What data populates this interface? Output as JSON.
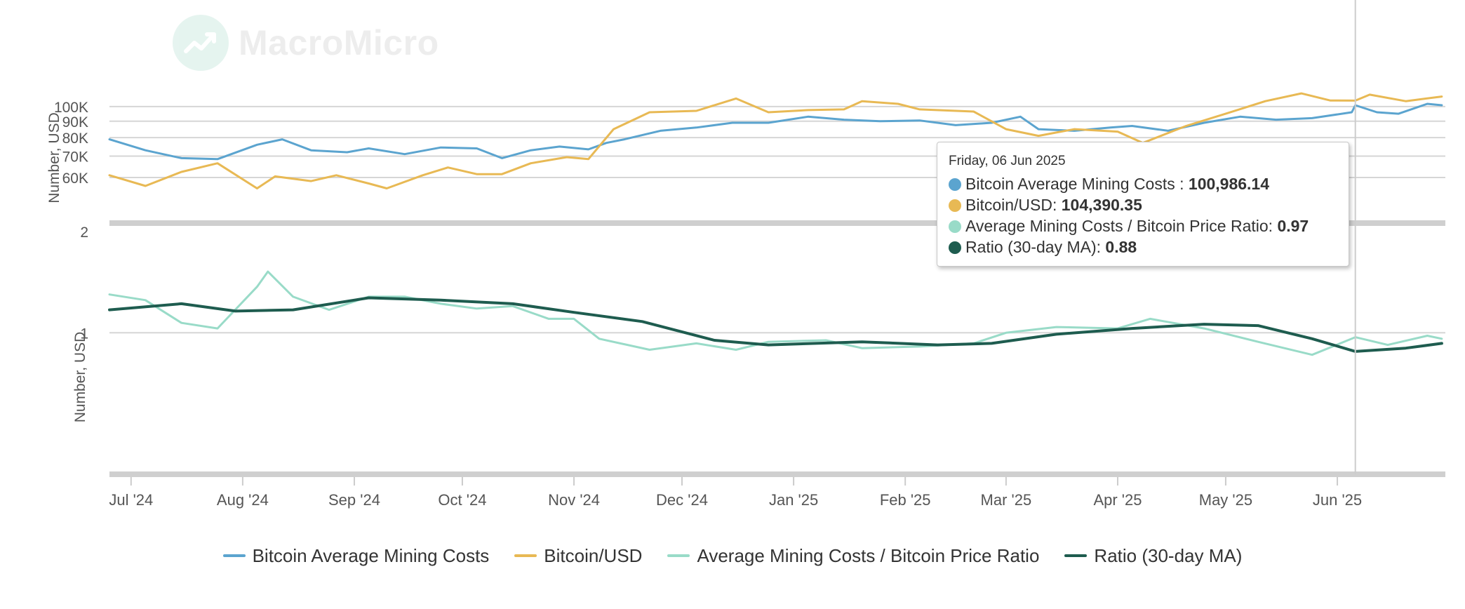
{
  "watermark": {
    "text": "MacroMicro",
    "icon": "chart-logo-icon"
  },
  "chart_data": {
    "type": "line",
    "panels": [
      {
        "ylabel": "Number, USD",
        "yscale": "log",
        "ylim": [
          45000,
          130000
        ],
        "yticks": [
          {
            "value": 60000,
            "label": "60K"
          },
          {
            "value": 70000,
            "label": "70K"
          },
          {
            "value": 80000,
            "label": "80K"
          },
          {
            "value": 90000,
            "label": "90K"
          },
          {
            "value": 100000,
            "label": "100K"
          }
        ],
        "series": [
          {
            "name": "Bitcoin Average Mining Costs",
            "color": "#5ba4cf",
            "points": [
              [
                "2024-06-25",
                79000
              ],
              [
                "2024-07-05",
                73000
              ],
              [
                "2024-07-15",
                69000
              ],
              [
                "2024-07-25",
                68500
              ],
              [
                "2024-08-05",
                76000
              ],
              [
                "2024-08-12",
                79000
              ],
              [
                "2024-08-20",
                73000
              ],
              [
                "2024-08-30",
                72000
              ],
              [
                "2024-09-05",
                74000
              ],
              [
                "2024-09-15",
                71000
              ],
              [
                "2024-09-25",
                74500
              ],
              [
                "2024-10-05",
                74000
              ],
              [
                "2024-10-12",
                69000
              ],
              [
                "2024-10-20",
                73000
              ],
              [
                "2024-10-28",
                75000
              ],
              [
                "2024-11-05",
                73500
              ],
              [
                "2024-11-10",
                77000
              ],
              [
                "2024-11-15",
                79000
              ],
              [
                "2024-11-25",
                84000
              ],
              [
                "2024-12-05",
                86000
              ],
              [
                "2024-12-15",
                89000
              ],
              [
                "2024-12-25",
                89000
              ],
              [
                "2025-01-05",
                93000
              ],
              [
                "2025-01-15",
                91000
              ],
              [
                "2025-01-25",
                90000
              ],
              [
                "2025-02-05",
                90500
              ],
              [
                "2025-02-15",
                87500
              ],
              [
                "2025-02-25",
                89000
              ],
              [
                "2025-03-05",
                93000
              ],
              [
                "2025-03-10",
                85000
              ],
              [
                "2025-03-20",
                84000
              ],
              [
                "2025-03-30",
                86000
              ],
              [
                "2025-04-05",
                87000
              ],
              [
                "2025-04-15",
                84000
              ],
              [
                "2025-04-25",
                89000
              ],
              [
                "2025-05-05",
                93000
              ],
              [
                "2025-05-15",
                91000
              ],
              [
                "2025-05-25",
                92000
              ],
              [
                "2025-06-05",
                96000
              ],
              [
                "2025-06-06",
                100986.14
              ],
              [
                "2025-06-12",
                96000
              ],
              [
                "2025-06-18",
                95000
              ],
              [
                "2025-06-26",
                102000
              ],
              [
                "2025-06-30",
                101000
              ]
            ]
          },
          {
            "name": "Bitcoin/USD",
            "color": "#e8b954",
            "points": [
              [
                "2024-06-25",
                61000
              ],
              [
                "2024-07-05",
                56500
              ],
              [
                "2024-07-15",
                62500
              ],
              [
                "2024-07-25",
                66500
              ],
              [
                "2024-08-05",
                55500
              ],
              [
                "2024-08-10",
                60500
              ],
              [
                "2024-08-20",
                58500
              ],
              [
                "2024-08-27",
                61000
              ],
              [
                "2024-09-05",
                57500
              ],
              [
                "2024-09-10",
                55500
              ],
              [
                "2024-09-20",
                61000
              ],
              [
                "2024-09-27",
                64500
              ],
              [
                "2024-10-05",
                61500
              ],
              [
                "2024-10-12",
                61500
              ],
              [
                "2024-10-20",
                66500
              ],
              [
                "2024-10-30",
                69500
              ],
              [
                "2024-11-05",
                68500
              ],
              [
                "2024-11-12",
                85000
              ],
              [
                "2024-11-22",
                96000
              ],
              [
                "2024-12-05",
                97000
              ],
              [
                "2024-12-16",
                106000
              ],
              [
                "2024-12-25",
                96000
              ],
              [
                "2025-01-05",
                97500
              ],
              [
                "2025-01-15",
                98000
              ],
              [
                "2025-01-20",
                104000
              ],
              [
                "2025-01-30",
                102000
              ],
              [
                "2025-02-05",
                98000
              ],
              [
                "2025-02-20",
                96500
              ],
              [
                "2025-03-01",
                85000
              ],
              [
                "2025-03-10",
                81000
              ],
              [
                "2025-03-20",
                85000
              ],
              [
                "2025-04-01",
                83500
              ],
              [
                "2025-04-08",
                77000
              ],
              [
                "2025-04-20",
                87000
              ],
              [
                "2025-05-01",
                95000
              ],
              [
                "2025-05-12",
                104000
              ],
              [
                "2025-05-22",
                110000
              ],
              [
                "2025-05-30",
                104500
              ],
              [
                "2025-06-06",
                104390.35
              ],
              [
                "2025-06-10",
                109000
              ],
              [
                "2025-06-20",
                104000
              ],
              [
                "2025-06-30",
                107500
              ]
            ]
          }
        ]
      },
      {
        "ylabel": "Number, USD",
        "yscale": "log",
        "ylim": [
          0.4,
          2
        ],
        "yticks": [
          {
            "value": 1,
            "label": "1"
          },
          {
            "value": 2,
            "label": "2"
          }
        ],
        "series": [
          {
            "name": "Average Mining Costs / Bitcoin Price Ratio",
            "color": "#99dbc8",
            "points": [
              [
                "2024-06-25",
                1.3
              ],
              [
                "2024-07-05",
                1.25
              ],
              [
                "2024-07-15",
                1.07
              ],
              [
                "2024-07-25",
                1.03
              ],
              [
                "2024-08-05",
                1.37
              ],
              [
                "2024-08-08",
                1.52
              ],
              [
                "2024-08-15",
                1.28
              ],
              [
                "2024-08-25",
                1.17
              ],
              [
                "2024-09-05",
                1.28
              ],
              [
                "2024-09-15",
                1.28
              ],
              [
                "2024-09-25",
                1.22
              ],
              [
                "2024-10-05",
                1.18
              ],
              [
                "2024-10-15",
                1.2
              ],
              [
                "2024-10-25",
                1.1
              ],
              [
                "2024-11-01",
                1.1
              ],
              [
                "2024-11-08",
                0.96
              ],
              [
                "2024-11-22",
                0.89
              ],
              [
                "2024-12-05",
                0.93
              ],
              [
                "2024-12-16",
                0.89
              ],
              [
                "2024-12-25",
                0.94
              ],
              [
                "2025-01-10",
                0.95
              ],
              [
                "2025-01-20",
                0.9
              ],
              [
                "2025-02-05",
                0.91
              ],
              [
                "2025-02-20",
                0.93
              ],
              [
                "2025-03-01",
                1.0
              ],
              [
                "2025-03-15",
                1.04
              ],
              [
                "2025-04-01",
                1.03
              ],
              [
                "2025-04-10",
                1.1
              ],
              [
                "2025-04-25",
                1.03
              ],
              [
                "2025-05-10",
                0.94
              ],
              [
                "2025-05-25",
                0.86
              ],
              [
                "2025-06-06",
                0.97
              ],
              [
                "2025-06-15",
                0.92
              ],
              [
                "2025-06-26",
                0.98
              ],
              [
                "2025-06-30",
                0.96
              ]
            ]
          },
          {
            "name": "Ratio (30-day MA)",
            "color": "#1e5c4f",
            "points": [
              [
                "2024-06-25",
                1.17
              ],
              [
                "2024-07-15",
                1.22
              ],
              [
                "2024-07-30",
                1.16
              ],
              [
                "2024-08-15",
                1.17
              ],
              [
                "2024-09-05",
                1.27
              ],
              [
                "2024-09-25",
                1.25
              ],
              [
                "2024-10-15",
                1.22
              ],
              [
                "2024-11-01",
                1.15
              ],
              [
                "2024-11-20",
                1.08
              ],
              [
                "2024-12-10",
                0.95
              ],
              [
                "2024-12-25",
                0.92
              ],
              [
                "2025-01-20",
                0.94
              ],
              [
                "2025-02-10",
                0.92
              ],
              [
                "2025-02-25",
                0.93
              ],
              [
                "2025-03-15",
                0.99
              ],
              [
                "2025-04-05",
                1.03
              ],
              [
                "2025-04-25",
                1.06
              ],
              [
                "2025-05-10",
                1.05
              ],
              [
                "2025-05-25",
                0.96
              ],
              [
                "2025-06-06",
                0.88
              ],
              [
                "2025-06-20",
                0.9
              ],
              [
                "2025-06-30",
                0.93
              ]
            ]
          }
        ]
      }
    ],
    "x_ticks": [
      "Jul '24",
      "Aug '24",
      "Sep '24",
      "Oct '24",
      "Nov '24",
      "Dec '24",
      "Jan '25",
      "Feb '25",
      "Mar '25",
      "Apr '25",
      "May '25",
      "Jun '25"
    ],
    "x_tick_dates": [
      "2024-07-01",
      "2024-08-01",
      "2024-09-01",
      "2024-10-01",
      "2024-11-01",
      "2024-12-01",
      "2025-01-01",
      "2025-02-01",
      "2025-03-01",
      "2025-04-01",
      "2025-05-01",
      "2025-06-01"
    ],
    "xlim": [
      "2024-06-25",
      "2025-07-01"
    ],
    "crosshair_date": "2025-06-06",
    "legend_position": "bottom"
  },
  "tooltip": {
    "date": "Friday, 06 Jun 2025",
    "rows": [
      {
        "label": "Bitcoin Average Mining Costs : ",
        "value": "100,986.14",
        "color": "#5ba4cf"
      },
      {
        "label": "Bitcoin/USD: ",
        "value": "104,390.35",
        "color": "#e8b954"
      },
      {
        "label": "Average Mining Costs / Bitcoin Price Ratio: ",
        "value": "0.97",
        "color": "#99dbc8"
      },
      {
        "label": "Ratio (30-day MA): ",
        "value": "0.88",
        "color": "#1e5c4f"
      }
    ]
  },
  "legend": [
    {
      "label": "Bitcoin Average Mining Costs",
      "color": "#5ba4cf"
    },
    {
      "label": "Bitcoin/USD",
      "color": "#e8b954"
    },
    {
      "label": "Average Mining Costs / Bitcoin Price Ratio",
      "color": "#99dbc8"
    },
    {
      "label": "Ratio (30-day MA)",
      "color": "#1e5c4f"
    }
  ]
}
